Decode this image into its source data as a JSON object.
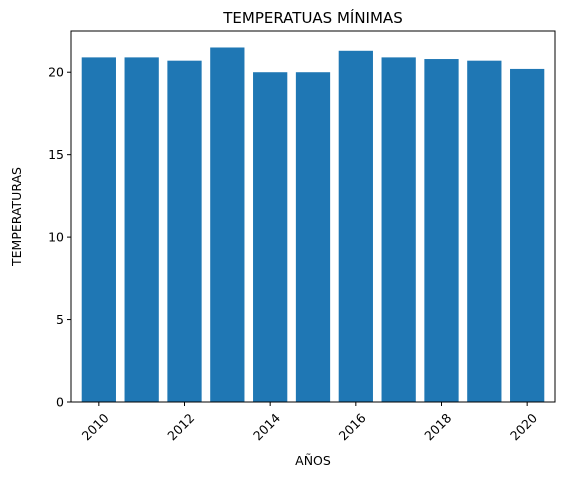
{
  "chart_data": {
    "type": "bar",
    "title": "TEMPERATUAS MÍNIMAS",
    "xlabel": "AÑOS",
    "ylabel": "TEMPERATURAS",
    "categories": [
      2010,
      2011,
      2012,
      2013,
      2014,
      2015,
      2016,
      2017,
      2018,
      2019,
      2020
    ],
    "values": [
      20.9,
      20.9,
      20.7,
      21.5,
      20.0,
      20.0,
      21.3,
      20.9,
      20.8,
      20.7,
      20.2
    ],
    "ylim": [
      0,
      22.5
    ],
    "xlim": [
      2009.35,
      2020.65
    ],
    "yticks": [
      0,
      5,
      10,
      15,
      20
    ],
    "xticks": [
      2010,
      2012,
      2014,
      2016,
      2018,
      2020
    ],
    "xtick_rotation": 45,
    "bar_color": "#1f77b4",
    "grid": false,
    "legend": "none"
  }
}
